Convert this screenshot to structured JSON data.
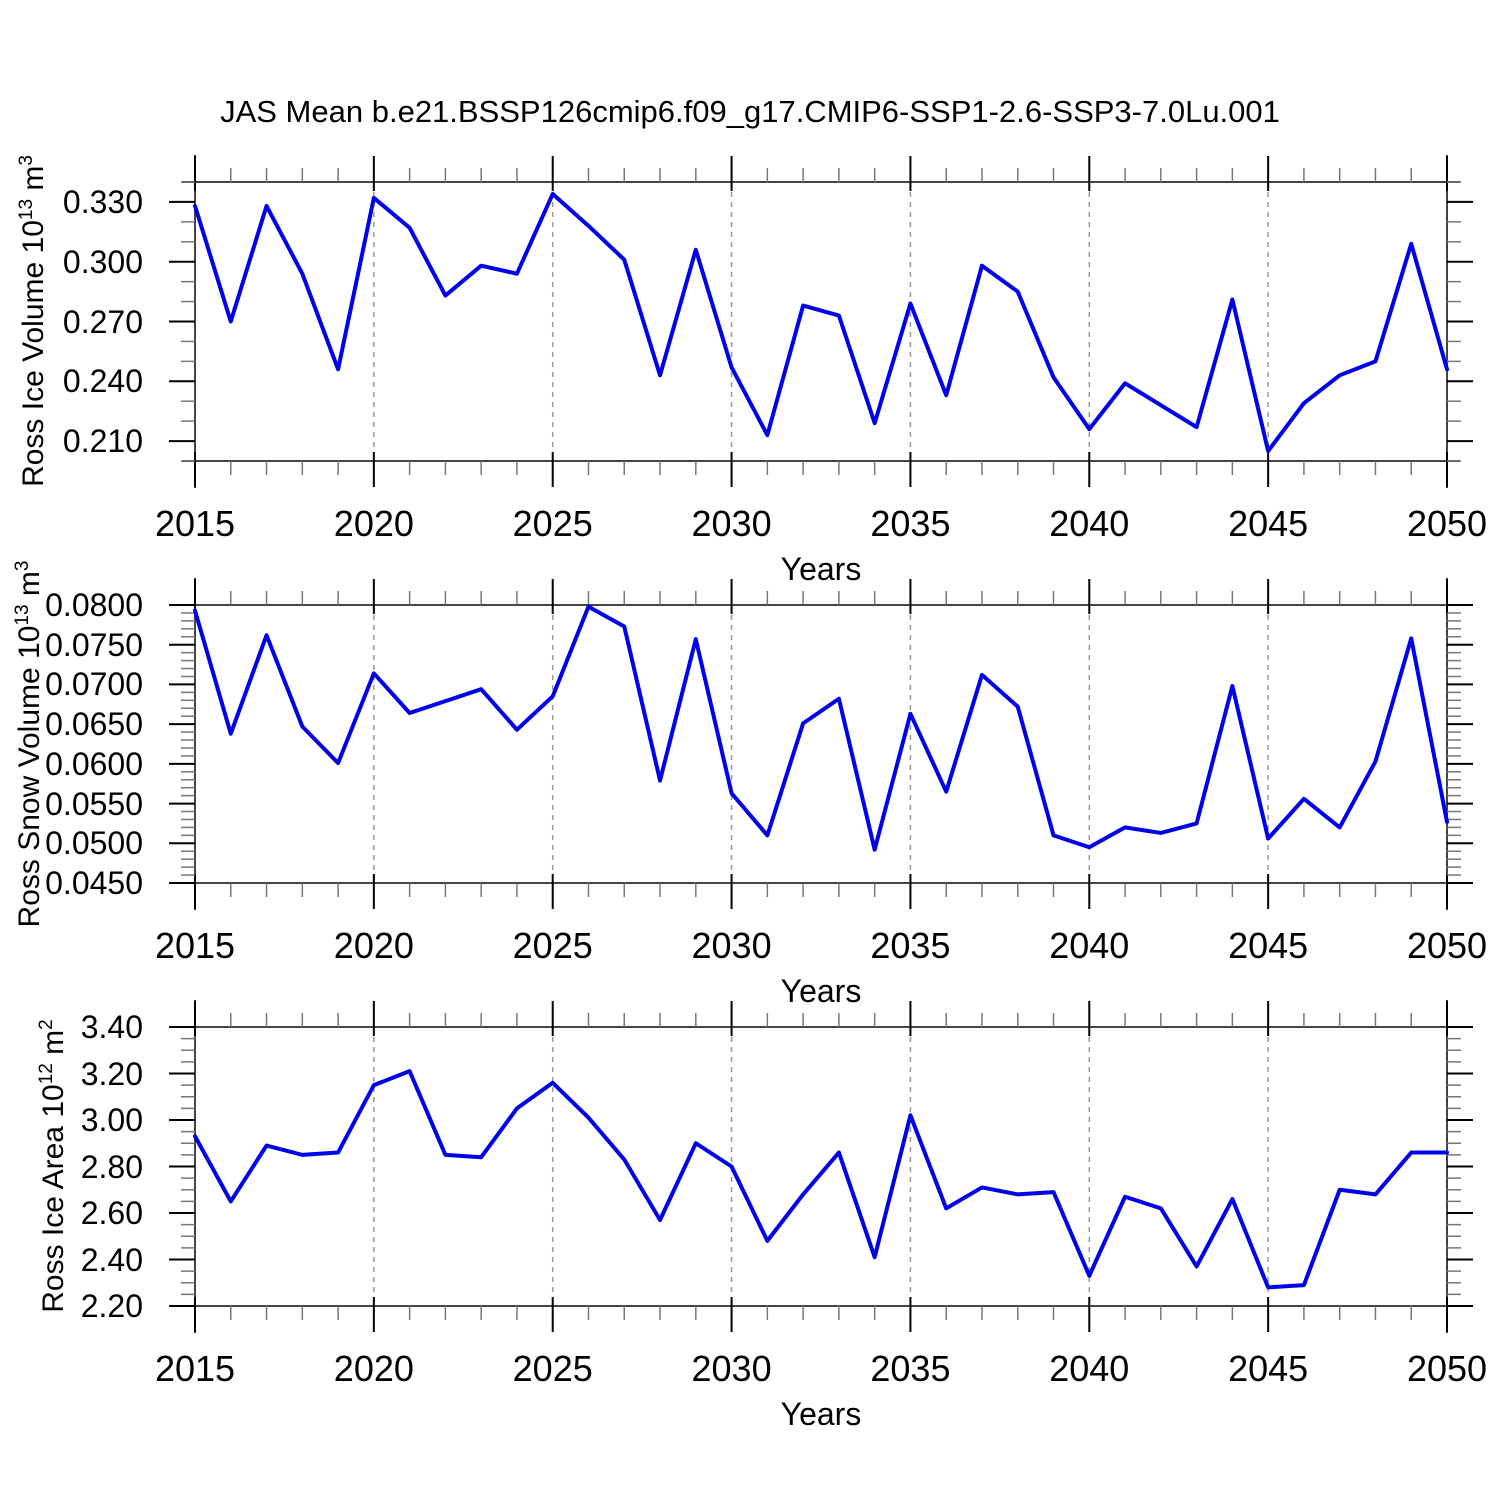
{
  "title": "JAS Mean b.e21.BSSP126cmip6.f09_g17.CMIP6-SSP1-2.6-SSP3-7.0Lu.001",
  "colors": {
    "line": "#0000EE",
    "axis": "#444444",
    "major_tick": "#000000",
    "minor_tick": "#777777",
    "gridline": "#999999",
    "text": "#000000",
    "background": "#FFFFFF"
  },
  "years": [
    2015,
    2016,
    2017,
    2018,
    2019,
    2020,
    2021,
    2022,
    2023,
    2024,
    2025,
    2026,
    2027,
    2028,
    2029,
    2030,
    2031,
    2032,
    2033,
    2034,
    2035,
    2036,
    2037,
    2038,
    2039,
    2040,
    2041,
    2042,
    2043,
    2044,
    2045,
    2046,
    2047,
    2048,
    2049,
    2050
  ],
  "chart_data": [
    {
      "type": "line",
      "ylabel_text": "Ross Ice Volume 10^13 m^3",
      "ylabel_parts": [
        "Ross Ice Volume 10",
        "13",
        " m",
        "3"
      ],
      "xlabel": "Years",
      "x_start": 2015,
      "x_end": 2050,
      "ylim": [
        0.2,
        0.34
      ],
      "y_tick_values": [
        0.33,
        0.3,
        0.27,
        0.24,
        0.21
      ],
      "y_tick_labels": [
        "0.330",
        "0.300",
        "0.270",
        "0.240",
        "0.210"
      ],
      "y_minor_step": 0.01,
      "x_tick_values": [
        2015,
        2020,
        2025,
        2030,
        2035,
        2040,
        2045,
        2050
      ],
      "x_tick_labels": [
        "2015",
        "2020",
        "2025",
        "2030",
        "2035",
        "2040",
        "2045",
        "2050"
      ],
      "x_minor_step": 1,
      "gridline_x": [
        2020,
        2025,
        2030,
        2035,
        2040,
        2045
      ],
      "values": [
        0.328,
        0.27,
        0.328,
        0.294,
        0.246,
        0.332,
        0.317,
        0.283,
        0.298,
        0.294,
        0.334,
        0.318,
        0.301,
        0.243,
        0.306,
        0.247,
        0.213,
        0.278,
        0.273,
        0.219,
        0.279,
        0.233,
        0.298,
        0.285,
        0.242,
        0.216,
        0.239,
        0.228,
        0.217,
        0.281,
        0.205,
        0.229,
        0.243,
        0.25,
        0.309,
        0.246
      ]
    },
    {
      "type": "line",
      "ylabel_text": "Ross Snow Volume 10^13 m^3",
      "ylabel_parts": [
        "Ross Snow Volume 10",
        "13",
        " m",
        "3"
      ],
      "xlabel": "Years",
      "x_start": 2015,
      "x_end": 2050,
      "ylim": [
        0.045,
        0.08
      ],
      "y_tick_values": [
        0.08,
        0.075,
        0.07,
        0.065,
        0.06,
        0.055,
        0.05,
        0.045
      ],
      "y_tick_labels": [
        "0.0800",
        "0.0750",
        "0.0700",
        "0.0650",
        "0.0600",
        "0.0550",
        "0.0500",
        "0.0450"
      ],
      "y_minor_step": 0.001,
      "x_tick_values": [
        2015,
        2020,
        2025,
        2030,
        2035,
        2040,
        2045,
        2050
      ],
      "x_tick_labels": [
        "2015",
        "2020",
        "2025",
        "2030",
        "2035",
        "2040",
        "2045",
        "2050"
      ],
      "x_minor_step": 1,
      "gridline_x": [
        2020,
        2025,
        2030,
        2035,
        2040,
        2045
      ],
      "values": [
        0.0793,
        0.0638,
        0.0762,
        0.0647,
        0.0601,
        0.0714,
        0.0664,
        0.0679,
        0.0694,
        0.0643,
        0.0685,
        0.0798,
        0.0773,
        0.0579,
        0.0757,
        0.0563,
        0.051,
        0.0651,
        0.0682,
        0.0492,
        0.0663,
        0.0565,
        0.0712,
        0.0672,
        0.051,
        0.0495,
        0.052,
        0.0513,
        0.0525,
        0.0698,
        0.0506,
        0.0556,
        0.052,
        0.0603,
        0.0758,
        0.0527
      ]
    },
    {
      "type": "line",
      "ylabel_text": "Ross Ice Area 10^12 m^2",
      "ylabel_parts": [
        "Ross Ice Area 10",
        "12",
        " m",
        "2"
      ],
      "xlabel": "Years",
      "x_start": 2015,
      "x_end": 2050,
      "ylim": [
        2.2,
        3.4
      ],
      "y_tick_values": [
        3.4,
        3.2,
        3.0,
        2.8,
        2.6,
        2.4,
        2.2
      ],
      "y_tick_labels": [
        "3.40",
        "3.20",
        "3.00",
        "2.80",
        "2.60",
        "2.40",
        "2.20"
      ],
      "y_minor_step": 0.05,
      "x_tick_values": [
        2015,
        2020,
        2025,
        2030,
        2035,
        2040,
        2045,
        2050
      ],
      "x_tick_labels": [
        "2015",
        "2020",
        "2025",
        "2030",
        "2035",
        "2040",
        "2045",
        "2050"
      ],
      "x_minor_step": 1,
      "gridline_x": [
        2020,
        2025,
        2030,
        2035,
        2040,
        2045
      ],
      "values": [
        2.93,
        2.65,
        2.89,
        2.85,
        2.86,
        3.15,
        3.21,
        2.85,
        2.84,
        3.05,
        3.16,
        3.01,
        2.83,
        2.57,
        2.9,
        2.8,
        2.48,
        2.68,
        2.86,
        2.41,
        3.02,
        2.62,
        2.71,
        2.68,
        2.69,
        2.33,
        2.67,
        2.62,
        2.37,
        2.66,
        2.28,
        2.29,
        2.7,
        2.68,
        2.86,
        2.86
      ]
    }
  ]
}
